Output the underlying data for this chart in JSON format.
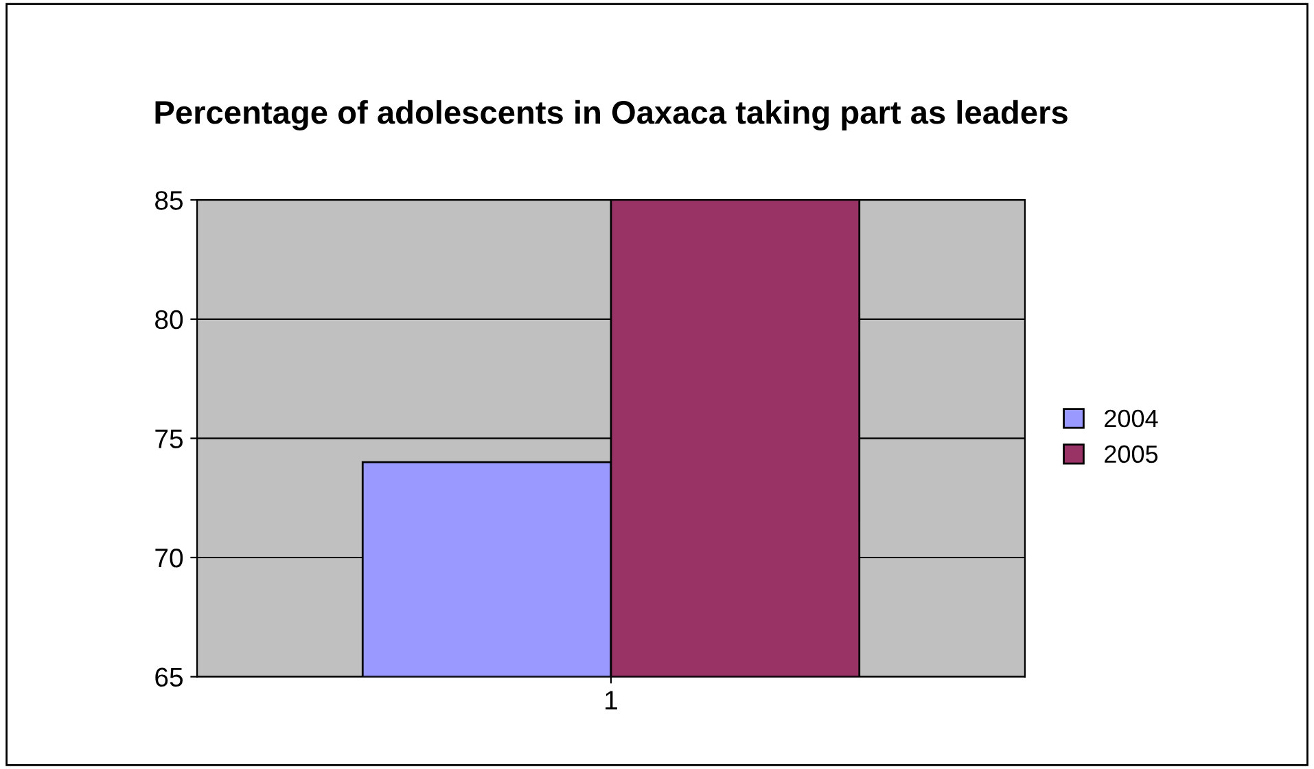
{
  "chart_data": {
    "type": "bar",
    "title": "Percentage of adolescents in Oaxaca taking part as leaders",
    "categories": [
      "1"
    ],
    "series": [
      {
        "name": "2004",
        "color": "#9999ff",
        "values": [
          74
        ]
      },
      {
        "name": "2005",
        "color": "#993366",
        "values": [
          85
        ]
      }
    ],
    "ylim": [
      65,
      85
    ],
    "yticks": [
      65,
      70,
      75,
      80,
      85
    ],
    "grid": "y",
    "legend": "right"
  }
}
